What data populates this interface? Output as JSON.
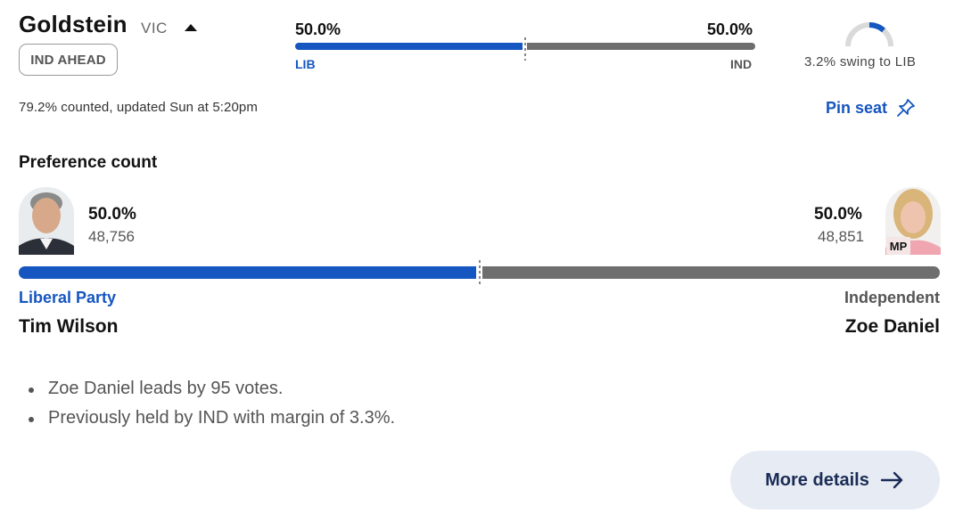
{
  "seat": {
    "name": "Goldstein",
    "state": "VIC",
    "status_badge": "IND AHEAD",
    "counted": "79.2% counted, updated Sun at 5:20pm"
  },
  "summary_bar": {
    "left_pct": "50.0%",
    "right_pct": "50.0%",
    "left_label": "LIB",
    "right_label": "IND",
    "left_share": 0.5
  },
  "swing": {
    "text": "3.2% swing to LIB",
    "icon": "swing-gauge-icon"
  },
  "pin": {
    "label": "Pin seat",
    "icon": "pin-icon"
  },
  "preference": {
    "heading": "Preference count",
    "left": {
      "pct": "50.0%",
      "votes": "48,756",
      "party": "Liberal Party",
      "name": "Tim Wilson"
    },
    "right": {
      "pct": "50.0%",
      "votes": "48,851",
      "party": "Independent",
      "name": "Zoe Daniel",
      "badge": "MP"
    }
  },
  "notes": [
    "Zoe Daniel leads by 95 votes.",
    "Previously held by IND with margin of 3.3%."
  ],
  "more_button": {
    "label": "More details",
    "icon": "arrow-right-icon"
  },
  "colors": {
    "liberal": "#1556c0",
    "independent": "#6e6e6e",
    "button_bg": "#e7ebf3"
  }
}
